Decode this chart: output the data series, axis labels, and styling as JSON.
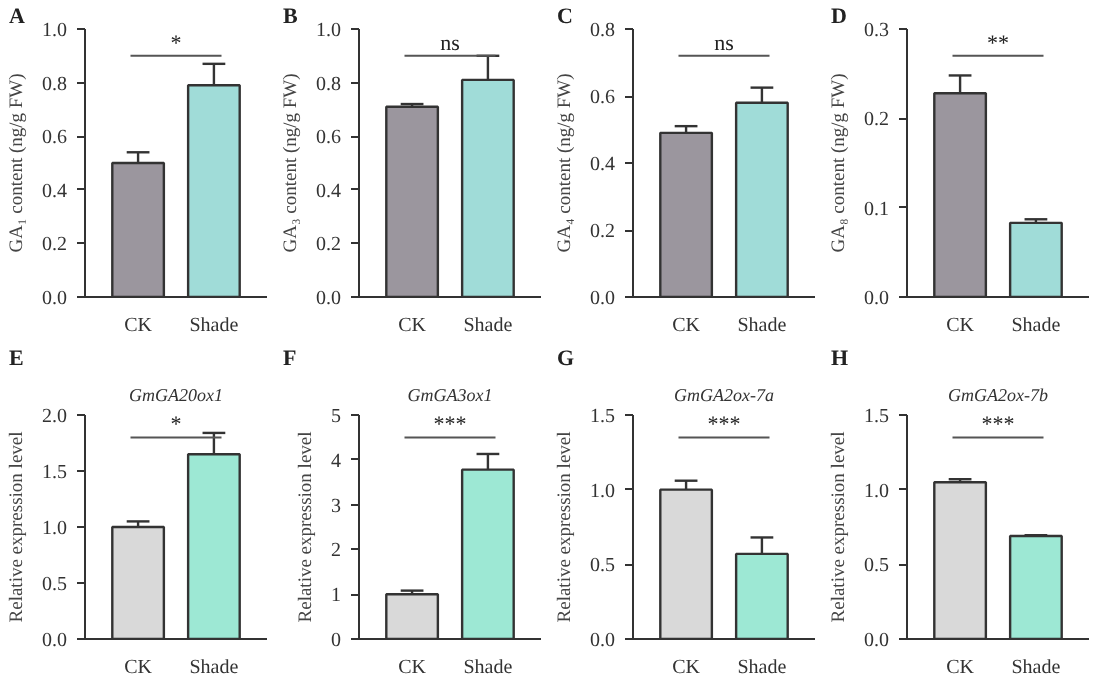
{
  "chart_data": [
    {
      "type": "bar",
      "ylabel": "GA₁ content (ng/g FW)",
      "categories": [
        "CK",
        "Shade"
      ],
      "values": [
        0.5,
        0.79
      ],
      "errors": [
        0.04,
        0.08
      ],
      "colors": [
        "#9b969e",
        "#a0dcd8"
      ],
      "ylim": [
        0,
        1.0
      ],
      "yticks": [
        {
          "value": 0,
          "label": "0.0"
        },
        0.2,
        0.4,
        0.6,
        0.8,
        {
          "value": 1.0,
          "label": "1.0"
        }
      ],
      "annotations": [
        "A",
        "*"
      ]
    },
    {
      "type": "bar",
      "ylabel": "GA₃ content (ng/g FW)",
      "categories": [
        "CK",
        "Shade"
      ],
      "values": [
        0.71,
        0.81
      ],
      "errors": [
        0.01,
        0.09
      ],
      "colors": [
        "#9b969e",
        "#a0dcd8"
      ],
      "ylim": [
        0,
        1.0
      ],
      "yticks": [
        {
          "value": 0,
          "label": "0.0"
        },
        0.2,
        0.4,
        0.6,
        0.8,
        {
          "value": 1.0,
          "label": "1.0"
        }
      ],
      "annotations": [
        "B",
        "ns"
      ]
    },
    {
      "type": "bar",
      "ylabel": "GA₄ content (ng/g FW)",
      "categories": [
        "CK",
        "Shade"
      ],
      "values": [
        0.49,
        0.58
      ],
      "errors": [
        0.02,
        0.045
      ],
      "colors": [
        "#9b969e",
        "#a0dcd8"
      ],
      "ylim": [
        0,
        0.8
      ],
      "yticks": [
        {
          "value": 0,
          "label": "0.0"
        },
        0.2,
        0.4,
        0.6,
        0.8
      ],
      "annotations": [
        "C",
        "ns"
      ]
    },
    {
      "type": "bar",
      "ylabel": "GA₈ content (ng/g FW)",
      "categories": [
        "CK",
        "Shade"
      ],
      "values": [
        0.228,
        0.083
      ],
      "errors": [
        0.02,
        0.004
      ],
      "colors": [
        "#9b969e",
        "#a0dcd8"
      ],
      "ylim": [
        0,
        0.3
      ],
      "yticks": [
        {
          "value": 0,
          "label": "0.0"
        },
        0.1,
        0.2,
        0.3
      ],
      "annotations": [
        "D",
        "**"
      ]
    },
    {
      "type": "bar",
      "title": "GmGA20ox1",
      "ylabel": "Relative expression level",
      "categories": [
        "CK",
        "Shade"
      ],
      "values": [
        1.0,
        1.65
      ],
      "errors": [
        0.05,
        0.19
      ],
      "colors": [
        "#d9d9d9",
        "#9de8d4"
      ],
      "ylim": [
        0,
        2.0
      ],
      "yticks": [
        {
          "value": 0,
          "label": "0.0"
        },
        0.5,
        {
          "value": 1.0,
          "label": "1.0"
        },
        1.5,
        {
          "value": 2.0,
          "label": "2.0"
        }
      ],
      "annotations": [
        "E",
        "*"
      ]
    },
    {
      "type": "bar",
      "title": "GmGA3ox1",
      "ylabel": "Relative expression level",
      "categories": [
        "CK",
        "Shade"
      ],
      "values": [
        1.0,
        3.78
      ],
      "errors": [
        0.08,
        0.35
      ],
      "colors": [
        "#d9d9d9",
        "#9de8d4"
      ],
      "ylim": [
        0,
        5
      ],
      "yticks": [
        0,
        1,
        2,
        3,
        4,
        5
      ],
      "annotations": [
        "F",
        "***"
      ]
    },
    {
      "type": "bar",
      "title": "GmGA2ox-7a",
      "ylabel": "Relative expression level",
      "categories": [
        "CK",
        "Shade"
      ],
      "values": [
        1.0,
        0.57
      ],
      "errors": [
        0.06,
        0.11
      ],
      "colors": [
        "#d9d9d9",
        "#9de8d4"
      ],
      "ylim": [
        0,
        1.5
      ],
      "yticks": [
        {
          "value": 0,
          "label": "0.0"
        },
        0.5,
        {
          "value": 1.0,
          "label": "1.0"
        },
        1.5
      ],
      "annotations": [
        "G",
        "***"
      ]
    },
    {
      "type": "bar",
      "title": "GmGA2ox-7b",
      "ylabel": "Relative expression level",
      "categories": [
        "CK",
        "Shade"
      ],
      "values": [
        1.05,
        0.69
      ],
      "errors": [
        0.02,
        0.005
      ],
      "colors": [
        "#d9d9d9",
        "#9de8d4"
      ],
      "ylim": [
        0,
        1.5
      ],
      "yticks": [
        {
          "value": 0,
          "label": "0.0"
        },
        0.5,
        {
          "value": 1.0,
          "label": "1.0"
        },
        1.5
      ],
      "annotations": [
        "H",
        "***"
      ]
    }
  ]
}
